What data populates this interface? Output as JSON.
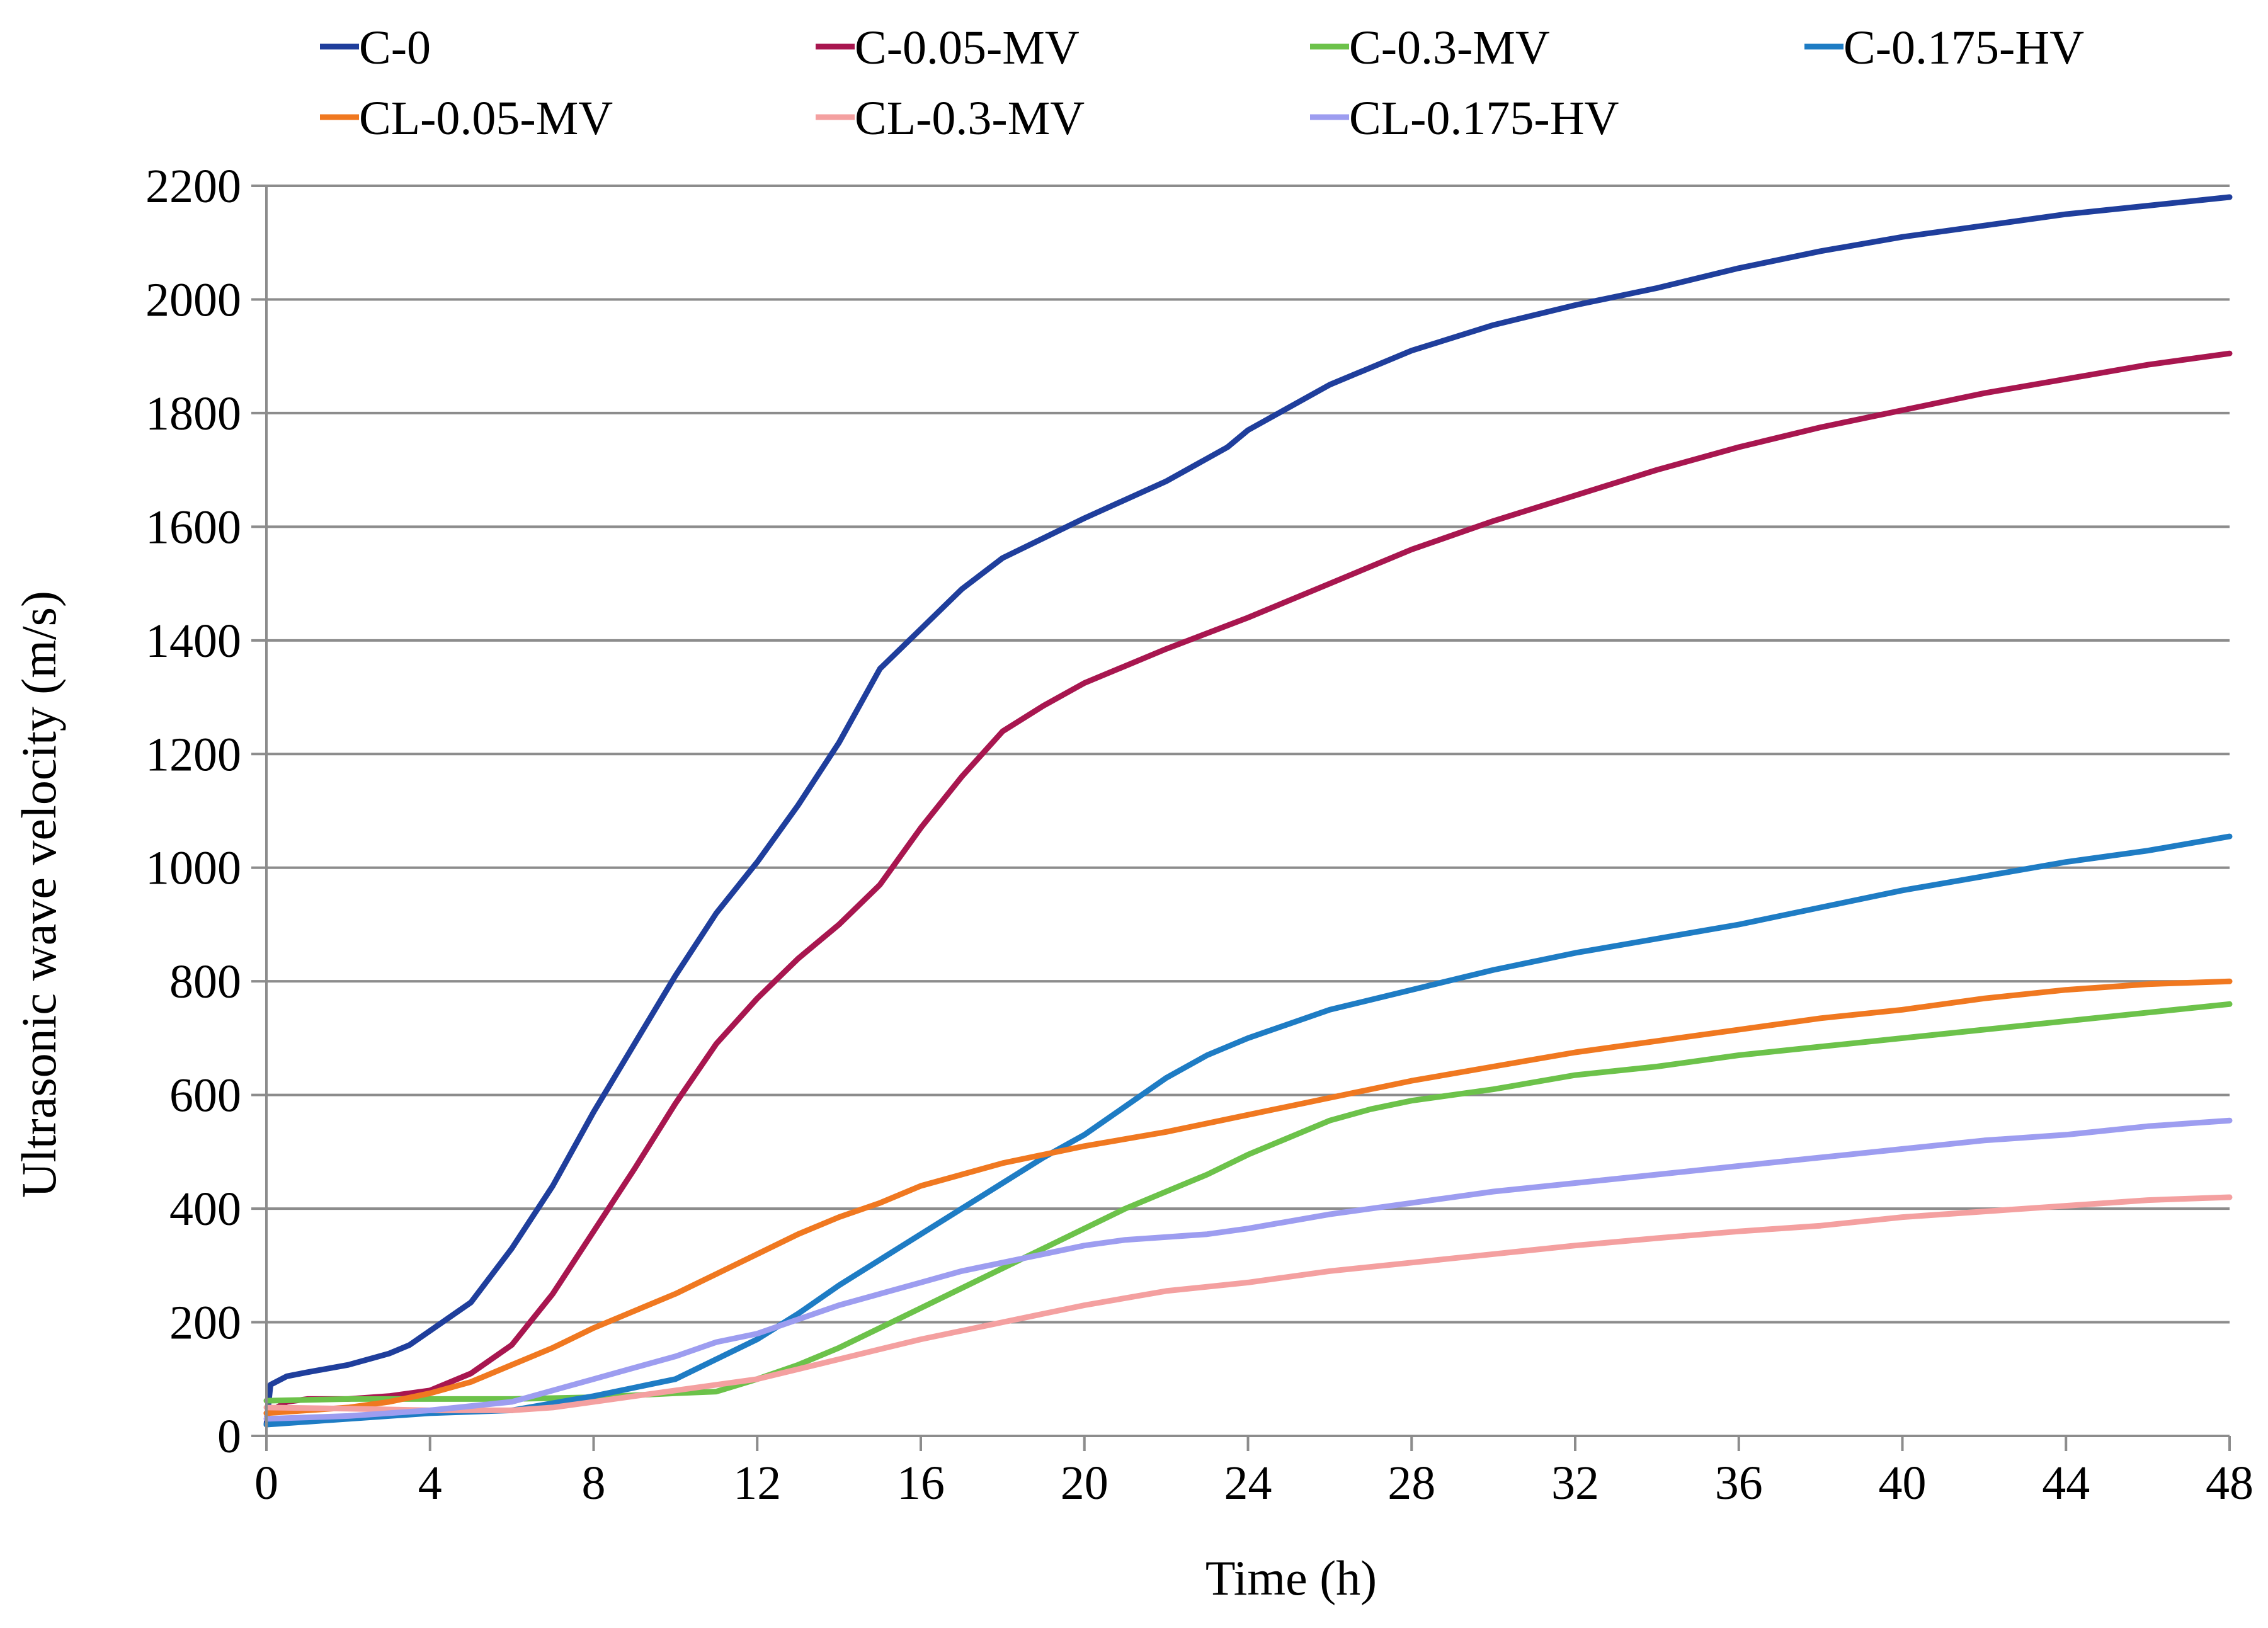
{
  "chart_data": {
    "type": "line",
    "title": "",
    "xlabel": "Time (h)",
    "ylabel": "Ultrasonic wave velocity (m/s)",
    "xlim": [
      0,
      48
    ],
    "ylim": [
      0,
      2200
    ],
    "grid": true,
    "legend_position": "top",
    "x_ticks": [
      "0",
      "4",
      "8",
      "12",
      "16",
      "20",
      "24",
      "28",
      "32",
      "36",
      "40",
      "44",
      "48"
    ],
    "y_ticks": [
      "0",
      "200",
      "400",
      "600",
      "800",
      "1000",
      "1200",
      "1400",
      "1600",
      "1800",
      "2000",
      "2200"
    ],
    "series": [
      {
        "name": "C-0",
        "color": "#1F3E9C",
        "points": [
          [
            0,
            20
          ],
          [
            0.1,
            90
          ],
          [
            0.5,
            105
          ],
          [
            1,
            112
          ],
          [
            2,
            125
          ],
          [
            3,
            145
          ],
          [
            3.5,
            160
          ],
          [
            4,
            185
          ],
          [
            5,
            235
          ],
          [
            6,
            330
          ],
          [
            7,
            440
          ],
          [
            8,
            570
          ],
          [
            9,
            690
          ],
          [
            10,
            810
          ],
          [
            11,
            920
          ],
          [
            12,
            1010
          ],
          [
            13,
            1110
          ],
          [
            14,
            1220
          ],
          [
            15,
            1350
          ],
          [
            16,
            1420
          ],
          [
            17,
            1490
          ],
          [
            18,
            1545
          ],
          [
            19,
            1580
          ],
          [
            20,
            1615
          ],
          [
            22,
            1680
          ],
          [
            23.5,
            1740
          ],
          [
            24,
            1770
          ],
          [
            26,
            1850
          ],
          [
            28,
            1910
          ],
          [
            30,
            1955
          ],
          [
            32,
            1990
          ],
          [
            34,
            2020
          ],
          [
            36,
            2055
          ],
          [
            38,
            2085
          ],
          [
            40,
            2110
          ],
          [
            42,
            2130
          ],
          [
            44,
            2150
          ],
          [
            46,
            2165
          ],
          [
            48,
            2180
          ]
        ]
      },
      {
        "name": "C-0.05-MV",
        "color": "#A8164F",
        "points": [
          [
            0,
            40
          ],
          [
            0.5,
            60
          ],
          [
            1,
            65
          ],
          [
            2,
            65
          ],
          [
            3,
            70
          ],
          [
            4,
            80
          ],
          [
            5,
            110
          ],
          [
            6,
            160
          ],
          [
            7,
            250
          ],
          [
            8,
            360
          ],
          [
            9,
            470
          ],
          [
            10,
            585
          ],
          [
            11,
            690
          ],
          [
            12,
            770
          ],
          [
            13,
            840
          ],
          [
            14,
            900
          ],
          [
            15,
            970
          ],
          [
            16,
            1070
          ],
          [
            17,
            1160
          ],
          [
            18,
            1240
          ],
          [
            19,
            1285
          ],
          [
            20,
            1325
          ],
          [
            22,
            1385
          ],
          [
            24,
            1440
          ],
          [
            26,
            1500
          ],
          [
            28,
            1560
          ],
          [
            30,
            1610
          ],
          [
            32,
            1655
          ],
          [
            34,
            1700
          ],
          [
            36,
            1740
          ],
          [
            38,
            1775
          ],
          [
            40,
            1805
          ],
          [
            42,
            1835
          ],
          [
            44,
            1860
          ],
          [
            46,
            1885
          ],
          [
            48,
            1905
          ]
        ]
      },
      {
        "name": "C-0.3-MV",
        "color": "#6CC24A",
        "points": [
          [
            0,
            62
          ],
          [
            2,
            65
          ],
          [
            4,
            65
          ],
          [
            6,
            65
          ],
          [
            8,
            68
          ],
          [
            10,
            75
          ],
          [
            11,
            78
          ],
          [
            12,
            100
          ],
          [
            13,
            125
          ],
          [
            14,
            155
          ],
          [
            15,
            190
          ],
          [
            16,
            225
          ],
          [
            17,
            260
          ],
          [
            18,
            295
          ],
          [
            19,
            330
          ],
          [
            20,
            365
          ],
          [
            21,
            400
          ],
          [
            22,
            430
          ],
          [
            23,
            460
          ],
          [
            24,
            495
          ],
          [
            25,
            525
          ],
          [
            26,
            555
          ],
          [
            27,
            575
          ],
          [
            28,
            590
          ],
          [
            30,
            610
          ],
          [
            32,
            635
          ],
          [
            34,
            650
          ],
          [
            36,
            670
          ],
          [
            38,
            685
          ],
          [
            40,
            700
          ],
          [
            42,
            715
          ],
          [
            44,
            730
          ],
          [
            46,
            745
          ],
          [
            48,
            760
          ]
        ]
      },
      {
        "name": "C-0.175-HV",
        "color": "#1E7CC4",
        "points": [
          [
            0,
            20
          ],
          [
            2,
            30
          ],
          [
            4,
            40
          ],
          [
            6,
            45
          ],
          [
            8,
            70
          ],
          [
            10,
            100
          ],
          [
            11,
            135
          ],
          [
            12,
            170
          ],
          [
            13,
            215
          ],
          [
            14,
            265
          ],
          [
            15,
            310
          ],
          [
            16,
            355
          ],
          [
            17,
            400
          ],
          [
            18,
            445
          ],
          [
            19,
            490
          ],
          [
            20,
            530
          ],
          [
            21,
            580
          ],
          [
            22,
            630
          ],
          [
            23,
            670
          ],
          [
            24,
            700
          ],
          [
            25,
            725
          ],
          [
            26,
            750
          ],
          [
            28,
            785
          ],
          [
            30,
            820
          ],
          [
            32,
            850
          ],
          [
            34,
            875
          ],
          [
            36,
            900
          ],
          [
            38,
            930
          ],
          [
            40,
            960
          ],
          [
            42,
            985
          ],
          [
            44,
            1010
          ],
          [
            46,
            1030
          ],
          [
            48,
            1055
          ]
        ]
      },
      {
        "name": "CL-0.05-MV",
        "color": "#F07820",
        "points": [
          [
            0,
            40
          ],
          [
            1,
            45
          ],
          [
            2,
            50
          ],
          [
            3,
            60
          ],
          [
            4,
            75
          ],
          [
            5,
            95
          ],
          [
            6,
            125
          ],
          [
            7,
            155
          ],
          [
            8,
            190
          ],
          [
            9,
            220
          ],
          [
            10,
            250
          ],
          [
            11,
            285
          ],
          [
            12,
            320
          ],
          [
            13,
            355
          ],
          [
            14,
            385
          ],
          [
            15,
            410
          ],
          [
            16,
            440
          ],
          [
            17,
            460
          ],
          [
            18,
            480
          ],
          [
            19,
            495
          ],
          [
            20,
            510
          ],
          [
            22,
            535
          ],
          [
            24,
            565
          ],
          [
            26,
            595
          ],
          [
            28,
            625
          ],
          [
            30,
            650
          ],
          [
            32,
            675
          ],
          [
            34,
            695
          ],
          [
            36,
            715
          ],
          [
            38,
            735
          ],
          [
            40,
            750
          ],
          [
            42,
            770
          ],
          [
            44,
            785
          ],
          [
            46,
            795
          ],
          [
            48,
            800
          ]
        ]
      },
      {
        "name": "CL-0.3-MV",
        "color": "#F4A0A0",
        "points": [
          [
            0,
            50
          ],
          [
            2,
            48
          ],
          [
            4,
            45
          ],
          [
            6,
            45
          ],
          [
            7,
            50
          ],
          [
            8,
            60
          ],
          [
            9,
            70
          ],
          [
            10,
            80
          ],
          [
            12,
            100
          ],
          [
            14,
            135
          ],
          [
            16,
            170
          ],
          [
            18,
            200
          ],
          [
            20,
            230
          ],
          [
            22,
            255
          ],
          [
            24,
            270
          ],
          [
            26,
            290
          ],
          [
            28,
            305
          ],
          [
            30,
            320
          ],
          [
            32,
            335
          ],
          [
            34,
            348
          ],
          [
            36,
            360
          ],
          [
            38,
            370
          ],
          [
            40,
            385
          ],
          [
            42,
            395
          ],
          [
            44,
            405
          ],
          [
            46,
            415
          ],
          [
            48,
            420
          ]
        ]
      },
      {
        "name": "CL-0.175-HV",
        "color": "#9D9DF0",
        "points": [
          [
            0,
            30
          ],
          [
            2,
            35
          ],
          [
            4,
            45
          ],
          [
            6,
            60
          ],
          [
            7,
            80
          ],
          [
            8,
            100
          ],
          [
            9,
            120
          ],
          [
            10,
            140
          ],
          [
            11,
            165
          ],
          [
            12,
            180
          ],
          [
            13,
            205
          ],
          [
            14,
            230
          ],
          [
            15,
            250
          ],
          [
            16,
            270
          ],
          [
            17,
            290
          ],
          [
            18,
            305
          ],
          [
            19,
            320
          ],
          [
            20,
            335
          ],
          [
            21,
            345
          ],
          [
            22,
            350
          ],
          [
            23,
            355
          ],
          [
            24,
            365
          ],
          [
            26,
            390
          ],
          [
            28,
            410
          ],
          [
            30,
            430
          ],
          [
            32,
            445
          ],
          [
            34,
            460
          ],
          [
            36,
            475
          ],
          [
            38,
            490
          ],
          [
            40,
            505
          ],
          [
            42,
            520
          ],
          [
            44,
            530
          ],
          [
            46,
            545
          ],
          [
            48,
            555
          ]
        ]
      }
    ]
  }
}
